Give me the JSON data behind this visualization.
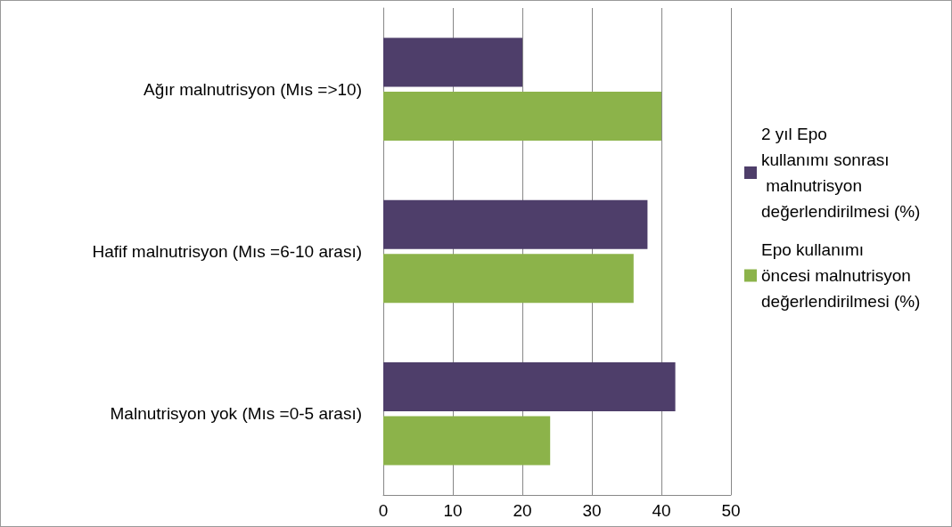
{
  "chart_data": {
    "type": "bar",
    "orientation": "horizontal",
    "categories": [
      "Ağır malnutrisyon (Mıs =>10)",
      "Hafif malnutrisyon (Mıs =6-10 arası)",
      "Malnutrisyon yok (Mıs =0-5 arası)"
    ],
    "series": [
      {
        "name": "2 yıl Epo kullanımı sonrası malnutrisyon değerlendirilmesi (%)",
        "color": "#4e3e6a",
        "values": [
          20,
          38,
          42
        ]
      },
      {
        "name": "Epo kullanımı öncesi malnutrisyon değerlendirilmesi (%)",
        "color": "#8cb34a",
        "values": [
          40,
          36,
          24
        ]
      }
    ],
    "xlim": [
      0,
      50
    ],
    "xticks": [
      0,
      10,
      20,
      30,
      40,
      50
    ],
    "grid": "x",
    "legend": "right"
  }
}
